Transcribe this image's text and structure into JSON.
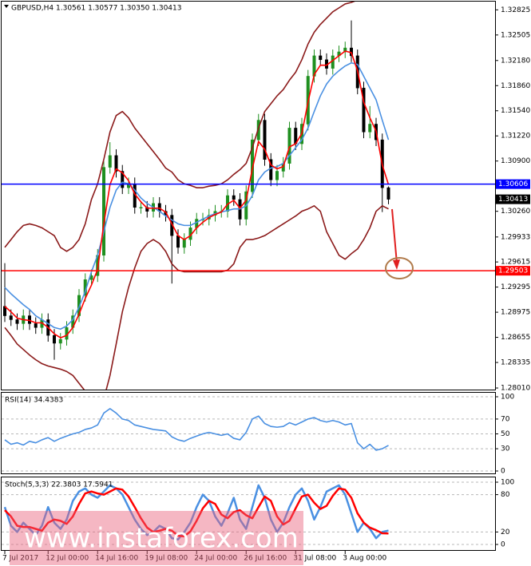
{
  "chart_data": [
    {
      "type": "candlestick",
      "title": "GBPUSD,H4  1.30561 1.30577 1.30350 1.30413",
      "categories": [
        "7 Jul 2017",
        null,
        null,
        null,
        null,
        null,
        null,
        "12 Jul 00:00",
        null,
        null,
        null,
        null,
        null,
        null,
        null,
        "14 Jul 16:00",
        null,
        null,
        null,
        null,
        null,
        null,
        null,
        "19 Jul 08:00",
        null,
        null,
        null,
        null,
        null,
        null,
        null,
        "24 Jul 00:00",
        null,
        null,
        null,
        null,
        null,
        null,
        null,
        "26 Jul 16:00",
        null,
        null,
        null,
        null,
        null,
        null,
        null,
        "31 Jul 08:00",
        null,
        null,
        null,
        null,
        null,
        null,
        null,
        "3 Aug 00:00",
        null,
        null,
        null,
        null,
        null,
        null,
        null
      ],
      "open": [
        1.2905,
        1.2893,
        1.2888,
        1.2883,
        1.2893,
        1.2883,
        1.2878,
        1.2888,
        1.2868,
        1.2858,
        1.2863,
        1.2878,
        1.2893,
        1.2919,
        1.2939,
        1.2944,
        1.297,
        1.3082,
        1.3097,
        1.3077,
        1.3056,
        1.3061,
        1.3031,
        1.3031,
        1.3026,
        1.3036,
        1.3026,
        1.3021,
        1.2995,
        1.298,
        1.299,
        1.3005,
        1.3016,
        1.3016,
        1.3021,
        1.3026,
        1.3026,
        1.3046,
        1.3041,
        1.3016,
        1.3051,
        1.3117,
        1.3142,
        1.3092,
        1.3066,
        1.3077,
        1.3087,
        1.3132,
        1.3112,
        1.3137,
        1.3198,
        1.3224,
        1.3219,
        1.3208,
        1.3224,
        1.3229,
        1.3234,
        1.3224,
        1.3183,
        1.3127,
        1.3137,
        1.3117,
        1.30561
      ],
      "high": [
        1.296,
        1.2901,
        1.2896,
        1.2901,
        1.2901,
        1.2891,
        1.2896,
        1.2896,
        1.2876,
        1.2871,
        1.2886,
        1.2901,
        1.2927,
        1.2947,
        1.2952,
        1.2978,
        1.309,
        1.3114,
        1.3105,
        1.3085,
        1.3069,
        1.3069,
        1.3039,
        1.3039,
        1.3044,
        1.3044,
        1.3034,
        1.3029,
        1.3003,
        1.2998,
        1.3013,
        1.3024,
        1.3024,
        1.3029,
        1.3034,
        1.3034,
        1.3054,
        1.3054,
        1.3049,
        1.3059,
        1.3125,
        1.315,
        1.315,
        1.31,
        1.3085,
        1.3095,
        1.314,
        1.314,
        1.3145,
        1.3206,
        1.3232,
        1.3232,
        1.3227,
        1.3232,
        1.3237,
        1.3242,
        1.3269,
        1.3232,
        1.3191,
        1.316,
        1.3145,
        1.3125,
        1.30577
      ],
      "low": [
        1.2885,
        1.288,
        1.2875,
        1.2875,
        1.2875,
        1.287,
        1.287,
        1.286,
        1.2837,
        1.285,
        1.2855,
        1.287,
        1.2885,
        1.2911,
        1.2931,
        1.2936,
        1.2962,
        1.3074,
        1.3069,
        1.3048,
        1.3048,
        1.3023,
        1.3023,
        1.3018,
        1.3018,
        1.3018,
        1.3013,
        1.2934,
        1.2972,
        1.2972,
        1.2982,
        1.2997,
        1.3008,
        1.3008,
        1.3013,
        1.3018,
        1.3018,
        1.3033,
        1.3008,
        1.3008,
        1.3043,
        1.3109,
        1.3084,
        1.3058,
        1.3058,
        1.3069,
        1.3079,
        1.3104,
        1.3104,
        1.3129,
        1.319,
        1.3211,
        1.32,
        1.32,
        1.3216,
        1.3221,
        1.3216,
        1.3175,
        1.3119,
        1.3119,
        1.3109,
        1.3025,
        1.3035
      ],
      "close": [
        1.2893,
        1.2888,
        1.2883,
        1.2893,
        1.2883,
        1.2878,
        1.2888,
        1.2868,
        1.2858,
        1.2863,
        1.2878,
        1.2893,
        1.2919,
        1.2939,
        1.2944,
        1.297,
        1.3082,
        1.3097,
        1.3077,
        1.3056,
        1.3061,
        1.3031,
        1.3031,
        1.3026,
        1.3036,
        1.3026,
        1.3021,
        1.2995,
        1.298,
        1.299,
        1.3005,
        1.3016,
        1.3016,
        1.3021,
        1.3026,
        1.3026,
        1.3046,
        1.3041,
        1.3016,
        1.3051,
        1.3117,
        1.3142,
        1.3092,
        1.3066,
        1.3077,
        1.3087,
        1.3132,
        1.3112,
        1.3137,
        1.3198,
        1.3224,
        1.3219,
        1.3208,
        1.3224,
        1.3229,
        1.3234,
        1.3224,
        1.3183,
        1.3127,
        1.3137,
        1.3117,
        1.3056,
        1.30413
      ],
      "up_color": "#1f8f1f",
      "down_color": "#000000",
      "series": [
        {
          "color": "#8b1a1a",
          "values": [
            1.298,
            1.299,
            1.3,
            1.3008,
            1.301,
            1.3008,
            1.3005,
            1.3,
            1.2995,
            1.298,
            1.2975,
            1.298,
            1.299,
            1.301,
            1.3041,
            1.3061,
            1.3092,
            1.3127,
            1.3148,
            1.3153,
            1.3145,
            1.3132,
            1.3122,
            1.3112,
            1.3102,
            1.3092,
            1.3081,
            1.3076,
            1.3066,
            1.3061,
            1.3059,
            1.3056,
            1.3056,
            1.3058,
            1.3059,
            1.3061,
            1.3066,
            1.3073,
            1.3079,
            1.3087,
            1.3107,
            1.3132,
            1.3153,
            1.3163,
            1.3173,
            1.3181,
            1.3193,
            1.3203,
            1.3219,
            1.3239,
            1.3254,
            1.3264,
            1.3272,
            1.328,
            1.3285,
            1.329,
            1.3292,
            1.3295,
            1.33,
            1.33,
            1.33,
            1.33,
            1.33
          ]
        },
        {
          "color": "#8b1a1a",
          "values": [
            1.2878,
            1.2868,
            1.2857,
            1.285,
            1.2843,
            1.2837,
            1.2832,
            1.2829,
            1.2827,
            1.2825,
            1.2822,
            1.2817,
            1.2807,
            1.2797,
            1.2787,
            1.2782,
            1.2787,
            1.2817,
            1.2857,
            1.2898,
            1.2929,
            1.2954,
            1.2975,
            1.2985,
            1.299,
            1.2985,
            1.2975,
            1.2959,
            1.2951,
            1.2949,
            1.2949,
            1.2949,
            1.2949,
            1.2949,
            1.2949,
            1.2949,
            1.2951,
            1.2959,
            1.298,
            1.299,
            1.299,
            1.2992,
            1.2995,
            1.3,
            1.3005,
            1.301,
            1.3015,
            1.302,
            1.3026,
            1.3029,
            1.3033,
            1.3026,
            1.3,
            1.2985,
            1.297,
            1.2965,
            1.2972,
            1.2978,
            1.299,
            1.3005,
            1.3026,
            1.3033,
            1.3029
          ]
        },
        {
          "color": "#4a90e2",
          "values": [
            1.2929,
            1.2921,
            1.2914,
            1.2907,
            1.2901,
            1.2893,
            1.2888,
            1.2883,
            1.2878,
            1.2876,
            1.288,
            1.2888,
            1.2904,
            1.2924,
            1.2949,
            1.297,
            1.3,
            1.3031,
            1.3053,
            1.3063,
            1.3061,
            1.3053,
            1.3043,
            1.3036,
            1.3031,
            1.3026,
            1.302,
            1.3015,
            1.301,
            1.3008,
            1.3008,
            1.3012,
            1.3016,
            1.302,
            1.3023,
            1.3025,
            1.3027,
            1.3029,
            1.3029,
            1.3033,
            1.3046,
            1.3066,
            1.3076,
            1.3081,
            1.3083,
            1.3087,
            1.3097,
            1.3107,
            1.3117,
            1.3132,
            1.3153,
            1.3173,
            1.3188,
            1.3198,
            1.3205,
            1.3211,
            1.3215,
            1.3213,
            1.3198,
            1.3183,
            1.3168,
            1.3142,
            1.3117
          ]
        },
        {
          "color": "#ff0000",
          "values": [
            1.2905,
            1.2898,
            1.289,
            1.2888,
            1.2887,
            1.2884,
            1.2884,
            1.2878,
            1.287,
            1.2865,
            1.2868,
            1.2878,
            1.2895,
            1.2915,
            1.2932,
            1.2952,
            1.301,
            1.306,
            1.308,
            1.3075,
            1.3065,
            1.3048,
            1.3038,
            1.303,
            1.303,
            1.303,
            1.3025,
            1.301,
            1.2995,
            1.299,
            1.2995,
            1.3005,
            1.3012,
            1.3018,
            1.3022,
            1.3025,
            1.3035,
            1.304,
            1.303,
            1.304,
            1.308,
            1.3115,
            1.3105,
            1.3085,
            1.308,
            1.3083,
            1.3108,
            1.3112,
            1.3125,
            1.3165,
            1.32,
            1.3212,
            1.3212,
            1.3218,
            1.3224,
            1.323,
            1.3228,
            1.3205,
            1.3165,
            1.3145,
            1.3128,
            1.3085,
            1.306
          ]
        }
      ],
      "levels": [
        {
          "value": 1.30606,
          "label": "1.30606",
          "color": "#0000ff"
        },
        {
          "value": 1.29503,
          "label": "1.29503",
          "color": "#ff0000"
        }
      ],
      "last_price": {
        "value": 1.30413,
        "label": "1.30413",
        "color": "#000000"
      },
      "ylim": [
        1.2799,
        1.3293
      ],
      "yticks": [
        {
          "value": 1.32825,
          "label": "1.32825"
        },
        {
          "value": 1.32505,
          "label": "1.32505"
        },
        {
          "value": 1.3218,
          "label": "1.32180"
        },
        {
          "value": 1.3186,
          "label": "1.31860"
        },
        {
          "value": 1.3154,
          "label": "1.31540"
        },
        {
          "value": 1.3122,
          "label": "1.31220"
        },
        {
          "value": 1.309,
          "label": "1.30900"
        },
        {
          "value": 1.3026,
          "label": "1.30260"
        },
        {
          "value": 1.29933,
          "label": "1.29933"
        },
        {
          "value": 1.29615,
          "label": "1.29615"
        },
        {
          "value": 1.29295,
          "label": "1.29295"
        },
        {
          "value": 1.28975,
          "label": "1.28975"
        },
        {
          "value": 1.28655,
          "label": "1.28655"
        },
        {
          "value": 1.28335,
          "label": "1.28335"
        },
        {
          "value": 1.2801,
          "label": "1.28010"
        }
      ],
      "grid": false,
      "watermark": "www.instaforex.com"
    },
    {
      "type": "line",
      "title": "RSI(14) 34.4383",
      "series": [
        {
          "color": "#4a90e2",
          "values": [
            42,
            36,
            38,
            35,
            40,
            38,
            42,
            45,
            40,
            44,
            47,
            50,
            52,
            56,
            58,
            62,
            78,
            84,
            78,
            70,
            68,
            62,
            60,
            58,
            56,
            55,
            54,
            46,
            42,
            40,
            44,
            47,
            50,
            52,
            50,
            48,
            50,
            44,
            42,
            52,
            70,
            74,
            64,
            60,
            59,
            60,
            65,
            62,
            66,
            70,
            72,
            68,
            66,
            68,
            66,
            62,
            64,
            38,
            30,
            36,
            28,
            30,
            34.4383
          ]
        }
      ],
      "ylim": [
        0,
        100
      ],
      "yticks": [
        100,
        70,
        50,
        30,
        0
      ],
      "grid": true
    },
    {
      "type": "line",
      "title": "Stoch(5,3,3) 22.3803 17.5941",
      "series": [
        {
          "color": "#4a90e2",
          "values": [
            60,
            30,
            20,
            35,
            25,
            15,
            30,
            60,
            35,
            25,
            40,
            70,
            85,
            90,
            80,
            75,
            85,
            95,
            90,
            80,
            60,
            40,
            25,
            15,
            20,
            30,
            25,
            10,
            8,
            20,
            35,
            60,
            80,
            70,
            45,
            30,
            50,
            75,
            40,
            25,
            60,
            95,
            75,
            40,
            20,
            35,
            60,
            80,
            90,
            70,
            40,
            60,
            85,
            90,
            95,
            80,
            50,
            20,
            35,
            25,
            10,
            20,
            22.3803
          ]
        },
        {
          "color": "#ff0000",
          "values": [
            55,
            45,
            30,
            28,
            28,
            25,
            22,
            35,
            40,
            38,
            33,
            45,
            65,
            82,
            85,
            82,
            80,
            85,
            90,
            88,
            77,
            60,
            42,
            27,
            20,
            22,
            25,
            22,
            14,
            13,
            21,
            38,
            58,
            70,
            65,
            48,
            42,
            52,
            55,
            47,
            42,
            60,
            77,
            70,
            45,
            32,
            38,
            58,
            77,
            80,
            67,
            57,
            62,
            78,
            90,
            88,
            75,
            50,
            35,
            27,
            23,
            18,
            17.5941
          ]
        }
      ],
      "ylim": [
        0,
        100
      ],
      "yticks": [
        100,
        80,
        20,
        0
      ],
      "grid": true
    }
  ]
}
